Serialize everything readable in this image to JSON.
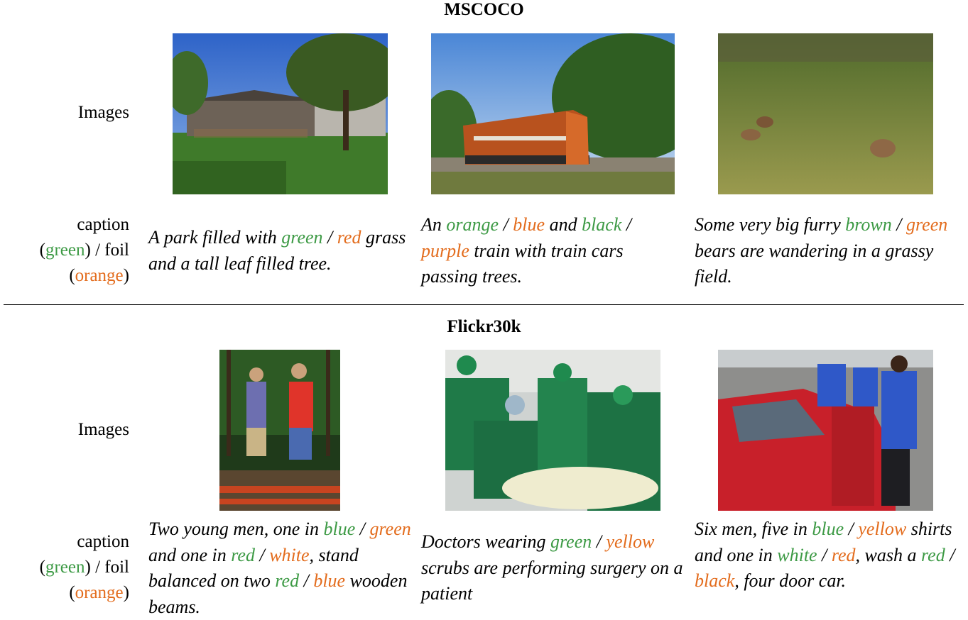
{
  "sections": [
    {
      "title": "MSCOCO",
      "images_label": "Images",
      "legend": {
        "line1": "caption",
        "green": "green",
        "mid": ") / foil",
        "orange": "orange",
        "open": "(",
        "close": ")"
      },
      "captions": [
        {
          "segments": [
            {
              "t": "A park filled with ",
              "c": ""
            },
            {
              "t": "green",
              "c": "g"
            },
            {
              "t": " / ",
              "c": ""
            },
            {
              "t": "red",
              "c": "o"
            },
            {
              "t": " grass and a tall leaf filled tree.",
              "c": ""
            }
          ]
        },
        {
          "segments": [
            {
              "t": "An ",
              "c": ""
            },
            {
              "t": "orange",
              "c": "g"
            },
            {
              "t": " / ",
              "c": ""
            },
            {
              "t": "blue",
              "c": "o"
            },
            {
              "t": " and ",
              "c": ""
            },
            {
              "t": "black",
              "c": "g"
            },
            {
              "t": " / ",
              "c": ""
            },
            {
              "t": "purple",
              "c": "o"
            },
            {
              "t": " train with train cars passing trees.",
              "c": ""
            }
          ]
        },
        {
          "segments": [
            {
              "t": "Some very big furry ",
              "c": ""
            },
            {
              "t": "brown",
              "c": "g"
            },
            {
              "t": " / ",
              "c": ""
            },
            {
              "t": "green",
              "c": "o"
            },
            {
              "t": " bears are wandering in a grassy field.",
              "c": ""
            }
          ]
        }
      ]
    },
    {
      "title": "Flickr30k",
      "images_label": "Images",
      "legend": {
        "line1": "caption",
        "green": "green",
        "mid": ") / foil",
        "orange": "orange",
        "open": "(",
        "close": ")"
      },
      "captions": [
        {
          "segments": [
            {
              "t": "Two young men, one in ",
              "c": ""
            },
            {
              "t": "blue",
              "c": "g"
            },
            {
              "t": " / ",
              "c": ""
            },
            {
              "t": "green",
              "c": "o"
            },
            {
              "t": " and one in ",
              "c": ""
            },
            {
              "t": "red",
              "c": "g"
            },
            {
              "t": " / ",
              "c": ""
            },
            {
              "t": "white",
              "c": "o"
            },
            {
              "t": ", stand balanced on two ",
              "c": ""
            },
            {
              "t": "red",
              "c": "g"
            },
            {
              "t": " / ",
              "c": ""
            },
            {
              "t": "blue",
              "c": "o"
            },
            {
              "t": " wooden beams.",
              "c": ""
            }
          ]
        },
        {
          "segments": [
            {
              "t": "Doctors wearing ",
              "c": ""
            },
            {
              "t": "green",
              "c": "g"
            },
            {
              "t": " / ",
              "c": ""
            },
            {
              "t": "yellow",
              "c": "o"
            },
            {
              "t": " scrubs are performing surgery on a patient",
              "c": ""
            }
          ]
        },
        {
          "segments": [
            {
              "t": "Six men, five in ",
              "c": ""
            },
            {
              "t": "blue",
              "c": "g"
            },
            {
              "t": " / ",
              "c": ""
            },
            {
              "t": "yellow",
              "c": "o"
            },
            {
              "t": " shirts and one in ",
              "c": ""
            },
            {
              "t": "white",
              "c": "g"
            },
            {
              "t": " / ",
              "c": ""
            },
            {
              "t": "red",
              "c": "o"
            },
            {
              "t": ", wash a ",
              "c": ""
            },
            {
              "t": "red",
              "c": "g"
            },
            {
              "t": " / ",
              "c": ""
            },
            {
              "t": "black",
              "c": "o"
            },
            {
              "t": ", four door car.",
              "c": ""
            }
          ]
        }
      ]
    }
  ],
  "colors": {
    "caption_green": "#3d9a45",
    "foil_orange": "#e36c1d"
  }
}
